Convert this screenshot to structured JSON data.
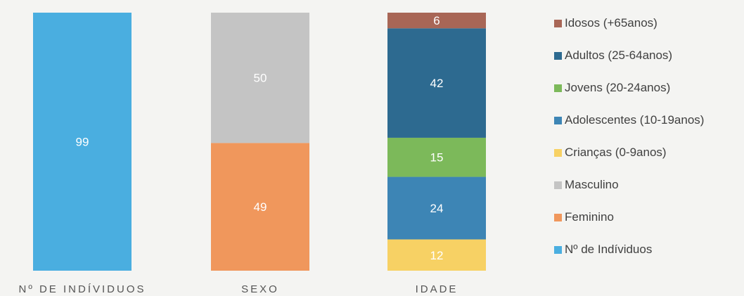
{
  "chart_data": {
    "type": "bar",
    "stacked": true,
    "categories": [
      "Nº DE INDÍVIDUOS",
      "SEXO",
      "IDADE"
    ],
    "series": [
      {
        "name": "Nº de Indíviduos",
        "color": "#4aaee0",
        "values": [
          99,
          null,
          null
        ]
      },
      {
        "name": "Feminino",
        "color": "#f0975c",
        "values": [
          null,
          49,
          null
        ]
      },
      {
        "name": "Masculino",
        "color": "#c4c4c4",
        "values": [
          null,
          50,
          null
        ]
      },
      {
        "name": "Crianças (0-9anos)",
        "color": "#f7d164",
        "values": [
          null,
          null,
          12
        ]
      },
      {
        "name": "Adolescentes (10-19anos)",
        "color": "#3d85b5",
        "values": [
          null,
          null,
          24
        ]
      },
      {
        "name": "Jovens (20-24anos)",
        "color": "#7cb95a",
        "values": [
          null,
          null,
          15
        ]
      },
      {
        "name": "Adultos (25-64anos)",
        "color": "#2d6a90",
        "values": [
          null,
          null,
          42
        ]
      },
      {
        "name": "Idosos (+65anos)",
        "color": "#a86656",
        "values": [
          null,
          null,
          6
        ]
      }
    ],
    "legend_order": [
      7,
      6,
      5,
      4,
      3,
      2,
      1,
      0
    ],
    "legend_position": "right",
    "ylim": [
      0,
      99
    ],
    "grid": false
  }
}
